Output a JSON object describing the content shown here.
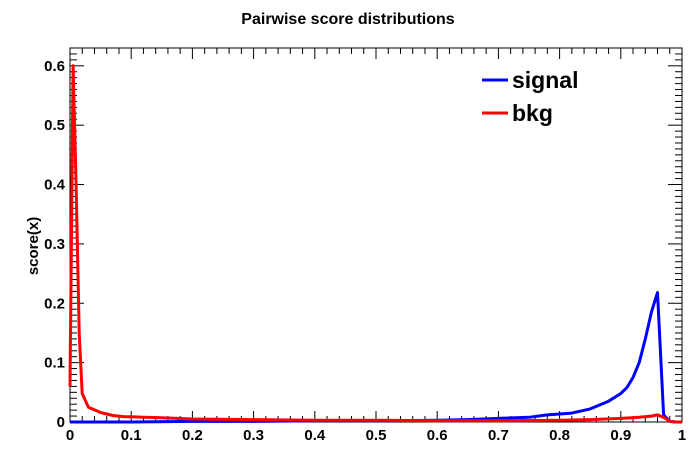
{
  "chart_data": {
    "type": "line",
    "title": "Pairwise score distributions",
    "xlabel": "",
    "ylabel": "score(x)",
    "xlim": [
      0,
      1
    ],
    "ylim": [
      0,
      0.63
    ],
    "x_ticks": [
      0,
      0.1,
      0.2,
      0.3,
      0.4,
      0.5,
      0.6,
      0.7,
      0.8,
      0.9,
      1
    ],
    "x_tick_labels": [
      "0",
      "0.1",
      "0.2",
      "0.3",
      "0.4",
      "0.5",
      "0.6",
      "0.7",
      "0.8",
      "0.9",
      "1"
    ],
    "y_ticks": [
      0,
      0.1,
      0.2,
      0.3,
      0.4,
      0.5,
      0.6
    ],
    "y_tick_labels": [
      "0",
      "0.1",
      "0.2",
      "0.3",
      "0.4",
      "0.5",
      "0.6"
    ],
    "grid": false,
    "legend_position": "top-right",
    "series": [
      {
        "name": "signal",
        "color": "#0000ff",
        "x": [
          0,
          0.1,
          0.2,
          0.3,
          0.4,
          0.5,
          0.6,
          0.65,
          0.7,
          0.75,
          0.78,
          0.82,
          0.85,
          0.88,
          0.9,
          0.91,
          0.92,
          0.93,
          0.94,
          0.95,
          0.96,
          0.97,
          0.98,
          0.99,
          1
        ],
        "y": [
          0,
          0,
          0.001,
          0.001,
          0.002,
          0.002,
          0.003,
          0.004,
          0.006,
          0.008,
          0.012,
          0.015,
          0.022,
          0.035,
          0.048,
          0.058,
          0.075,
          0.1,
          0.14,
          0.185,
          0.218,
          0.012,
          0.001,
          0,
          0
        ]
      },
      {
        "name": "bkg",
        "color": "#ff0000",
        "x": [
          0,
          0.005,
          0.01,
          0.015,
          0.02,
          0.03,
          0.05,
          0.07,
          0.09,
          0.1,
          0.12,
          0.15,
          0.2,
          0.3,
          0.4,
          0.5,
          0.6,
          0.7,
          0.8,
          0.85,
          0.9,
          0.93,
          0.95,
          0.96,
          0.97,
          0.98,
          0.99,
          1
        ],
        "y": [
          0.06,
          0.6,
          0.4,
          0.15,
          0.048,
          0.025,
          0.016,
          0.011,
          0.009,
          0.009,
          0.008,
          0.007,
          0.005,
          0.004,
          0.003,
          0.003,
          0.002,
          0.002,
          0.003,
          0.004,
          0.006,
          0.008,
          0.01,
          0.012,
          0.008,
          0.001,
          0,
          0
        ]
      }
    ]
  }
}
